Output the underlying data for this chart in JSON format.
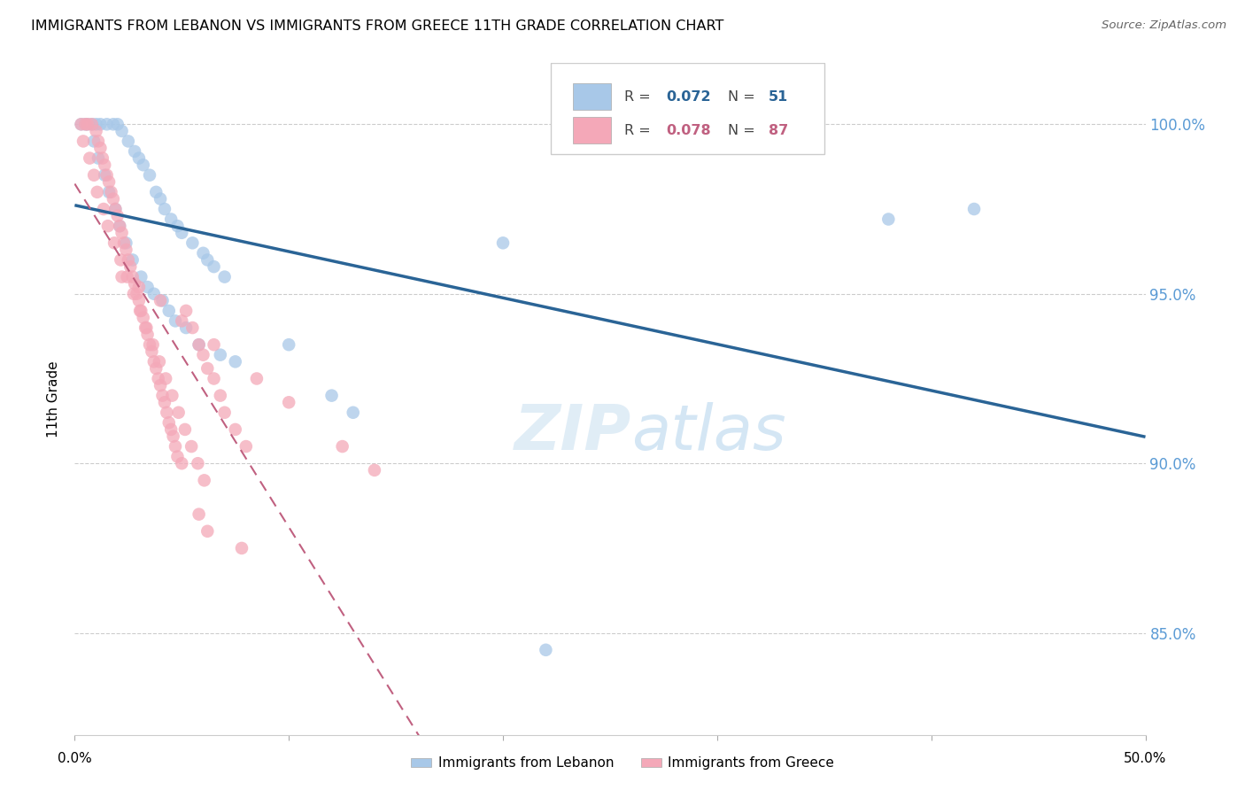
{
  "title": "IMMIGRANTS FROM LEBANON VS IMMIGRANTS FROM GREECE 11TH GRADE CORRELATION CHART",
  "source": "Source: ZipAtlas.com",
  "ylabel": "11th Grade",
  "xlim": [
    0.0,
    50.0
  ],
  "ylim": [
    82.0,
    101.8
  ],
  "ytick_vals": [
    85.0,
    90.0,
    95.0,
    100.0
  ],
  "ytick_labels": [
    "85.0%",
    "90.0%",
    "95.0%",
    "100.0%"
  ],
  "color_blue": "#a8c8e8",
  "color_pink": "#f4a8b8",
  "color_blue_line": "#2a6496",
  "color_pink_line": "#c06080",
  "color_right_axis": "#5b9bd5",
  "blue_points_x": [
    0.5,
    0.8,
    1.0,
    1.2,
    1.5,
    1.8,
    2.0,
    2.2,
    2.5,
    2.8,
    3.0,
    3.2,
    3.5,
    3.8,
    4.0,
    4.2,
    4.5,
    4.8,
    5.0,
    5.5,
    6.0,
    6.2,
    6.5,
    7.0,
    0.3,
    0.6,
    0.9,
    1.1,
    1.4,
    1.6,
    1.9,
    2.1,
    2.4,
    2.7,
    3.1,
    3.4,
    3.7,
    4.1,
    4.4,
    4.7,
    5.2,
    5.8,
    6.8,
    7.5,
    10.0,
    12.0,
    13.0,
    20.0,
    22.0,
    38.0,
    42.0
  ],
  "blue_points_y": [
    100.0,
    100.0,
    100.0,
    100.0,
    100.0,
    100.0,
    100.0,
    99.8,
    99.5,
    99.2,
    99.0,
    98.8,
    98.5,
    98.0,
    97.8,
    97.5,
    97.2,
    97.0,
    96.8,
    96.5,
    96.2,
    96.0,
    95.8,
    95.5,
    100.0,
    100.0,
    99.5,
    99.0,
    98.5,
    98.0,
    97.5,
    97.0,
    96.5,
    96.0,
    95.5,
    95.2,
    95.0,
    94.8,
    94.5,
    94.2,
    94.0,
    93.5,
    93.2,
    93.0,
    93.5,
    92.0,
    91.5,
    96.5,
    84.5,
    97.2,
    97.5
  ],
  "pink_points_x": [
    0.3,
    0.5,
    0.6,
    0.8,
    1.0,
    1.1,
    1.2,
    1.3,
    1.4,
    1.5,
    1.6,
    1.7,
    1.8,
    1.9,
    2.0,
    2.1,
    2.2,
    2.3,
    2.4,
    2.5,
    2.6,
    2.7,
    2.8,
    2.9,
    3.0,
    3.1,
    3.2,
    3.3,
    3.4,
    3.5,
    3.6,
    3.7,
    3.8,
    3.9,
    4.0,
    4.1,
    4.2,
    4.3,
    4.4,
    4.5,
    4.6,
    4.7,
    4.8,
    5.0,
    5.2,
    5.5,
    5.8,
    6.0,
    6.2,
    6.5,
    6.8,
    7.0,
    7.5,
    8.0,
    0.4,
    0.7,
    0.9,
    1.05,
    1.35,
    1.55,
    1.85,
    2.15,
    2.45,
    2.75,
    3.05,
    3.35,
    3.65,
    3.95,
    4.25,
    4.55,
    4.85,
    5.15,
    5.45,
    5.75,
    6.05,
    2.2,
    3.0,
    4.0,
    5.0,
    6.5,
    8.5,
    10.0,
    12.5,
    14.0,
    5.8,
    6.2,
    7.8
  ],
  "pink_points_y": [
    100.0,
    100.0,
    100.0,
    100.0,
    99.8,
    99.5,
    99.3,
    99.0,
    98.8,
    98.5,
    98.3,
    98.0,
    97.8,
    97.5,
    97.3,
    97.0,
    96.8,
    96.5,
    96.3,
    96.0,
    95.8,
    95.5,
    95.3,
    95.0,
    94.8,
    94.5,
    94.3,
    94.0,
    93.8,
    93.5,
    93.3,
    93.0,
    92.8,
    92.5,
    92.3,
    92.0,
    91.8,
    91.5,
    91.2,
    91.0,
    90.8,
    90.5,
    90.2,
    90.0,
    94.5,
    94.0,
    93.5,
    93.2,
    92.8,
    92.5,
    92.0,
    91.5,
    91.0,
    90.5,
    99.5,
    99.0,
    98.5,
    98.0,
    97.5,
    97.0,
    96.5,
    96.0,
    95.5,
    95.0,
    94.5,
    94.0,
    93.5,
    93.0,
    92.5,
    92.0,
    91.5,
    91.0,
    90.5,
    90.0,
    89.5,
    95.5,
    95.2,
    94.8,
    94.2,
    93.5,
    92.5,
    91.8,
    90.5,
    89.8,
    88.5,
    88.0,
    87.5
  ]
}
